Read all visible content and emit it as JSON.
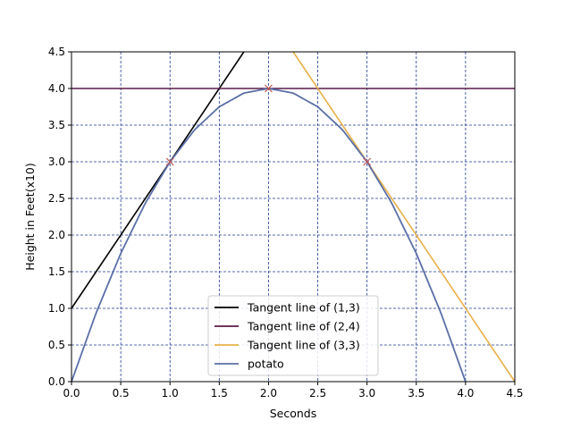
{
  "chart_data": {
    "type": "line",
    "title": "",
    "xlabel": "Seconds",
    "ylabel": "Height in Feet(x10)",
    "xlim": [
      0,
      4.5
    ],
    "ylim": [
      0,
      4.5
    ],
    "xticks": [
      "0.0",
      "0.5",
      "1.0",
      "1.5",
      "2.0",
      "2.5",
      "3.0",
      "3.5",
      "4.0",
      "4.5"
    ],
    "yticks": [
      "0.0",
      "0.5",
      "1.0",
      "1.5",
      "2.0",
      "2.5",
      "3.0",
      "3.5",
      "4.0",
      "4.5"
    ],
    "grid": true,
    "legend_position": "bottom-center",
    "series": [
      {
        "name": "Tangent line of (1,3)",
        "kind": "line",
        "color": "#000000",
        "x": [
          0,
          1.75
        ],
        "y": [
          1,
          4.5
        ]
      },
      {
        "name": "Tangent line of (2,4)",
        "kind": "line",
        "color": "#5c1a4a",
        "x": [
          0,
          4.5
        ],
        "y": [
          4,
          4
        ]
      },
      {
        "name": "Tangent line of (3,3)",
        "kind": "line",
        "color": "#e8b04a",
        "x": [
          2.25,
          4.5
        ],
        "y": [
          4.5,
          0
        ]
      },
      {
        "name": "potato",
        "kind": "curve",
        "color": "#5b6fa6",
        "x": [
          0,
          0.25,
          0.5,
          0.75,
          1,
          1.25,
          1.5,
          1.75,
          2,
          2.25,
          2.5,
          2.75,
          3,
          3.25,
          3.5,
          3.75,
          4
        ],
        "y": [
          0,
          0.9375,
          1.75,
          2.4375,
          3,
          3.4375,
          3.75,
          3.9375,
          4,
          3.9375,
          3.75,
          3.4375,
          3,
          2.4375,
          1.75,
          0.9375,
          0
        ]
      }
    ],
    "markers": {
      "symbol": "x",
      "color": "#c0504d",
      "points": [
        [
          1,
          3
        ],
        [
          2,
          4
        ],
        [
          3,
          3
        ]
      ]
    }
  }
}
